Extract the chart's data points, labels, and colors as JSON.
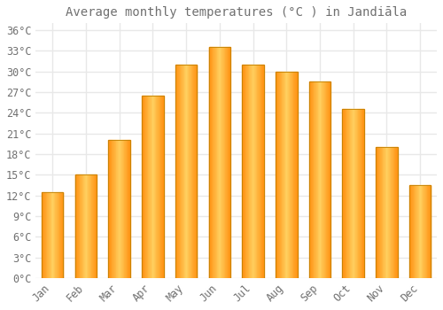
{
  "title": "Average monthly temperatures (°C ) in Jandiāla",
  "months": [
    "Jan",
    "Feb",
    "Mar",
    "Apr",
    "May",
    "Jun",
    "Jul",
    "Aug",
    "Sep",
    "Oct",
    "Nov",
    "Dec"
  ],
  "values": [
    12.5,
    15.0,
    20.0,
    26.5,
    31.0,
    33.5,
    31.0,
    30.0,
    28.5,
    24.5,
    19.0,
    13.5
  ],
  "bar_color_light": "#FFD060",
  "bar_color_dark": "#FFA020",
  "bar_edge_color": "#C08000",
  "background_color": "#FFFFFF",
  "grid_color": "#E8E8E8",
  "text_color": "#707070",
  "ylim": [
    0,
    37
  ],
  "yticks": [
    0,
    3,
    6,
    9,
    12,
    15,
    18,
    21,
    24,
    27,
    30,
    33,
    36
  ],
  "title_fontsize": 10,
  "tick_fontsize": 8.5,
  "bar_width": 0.65
}
